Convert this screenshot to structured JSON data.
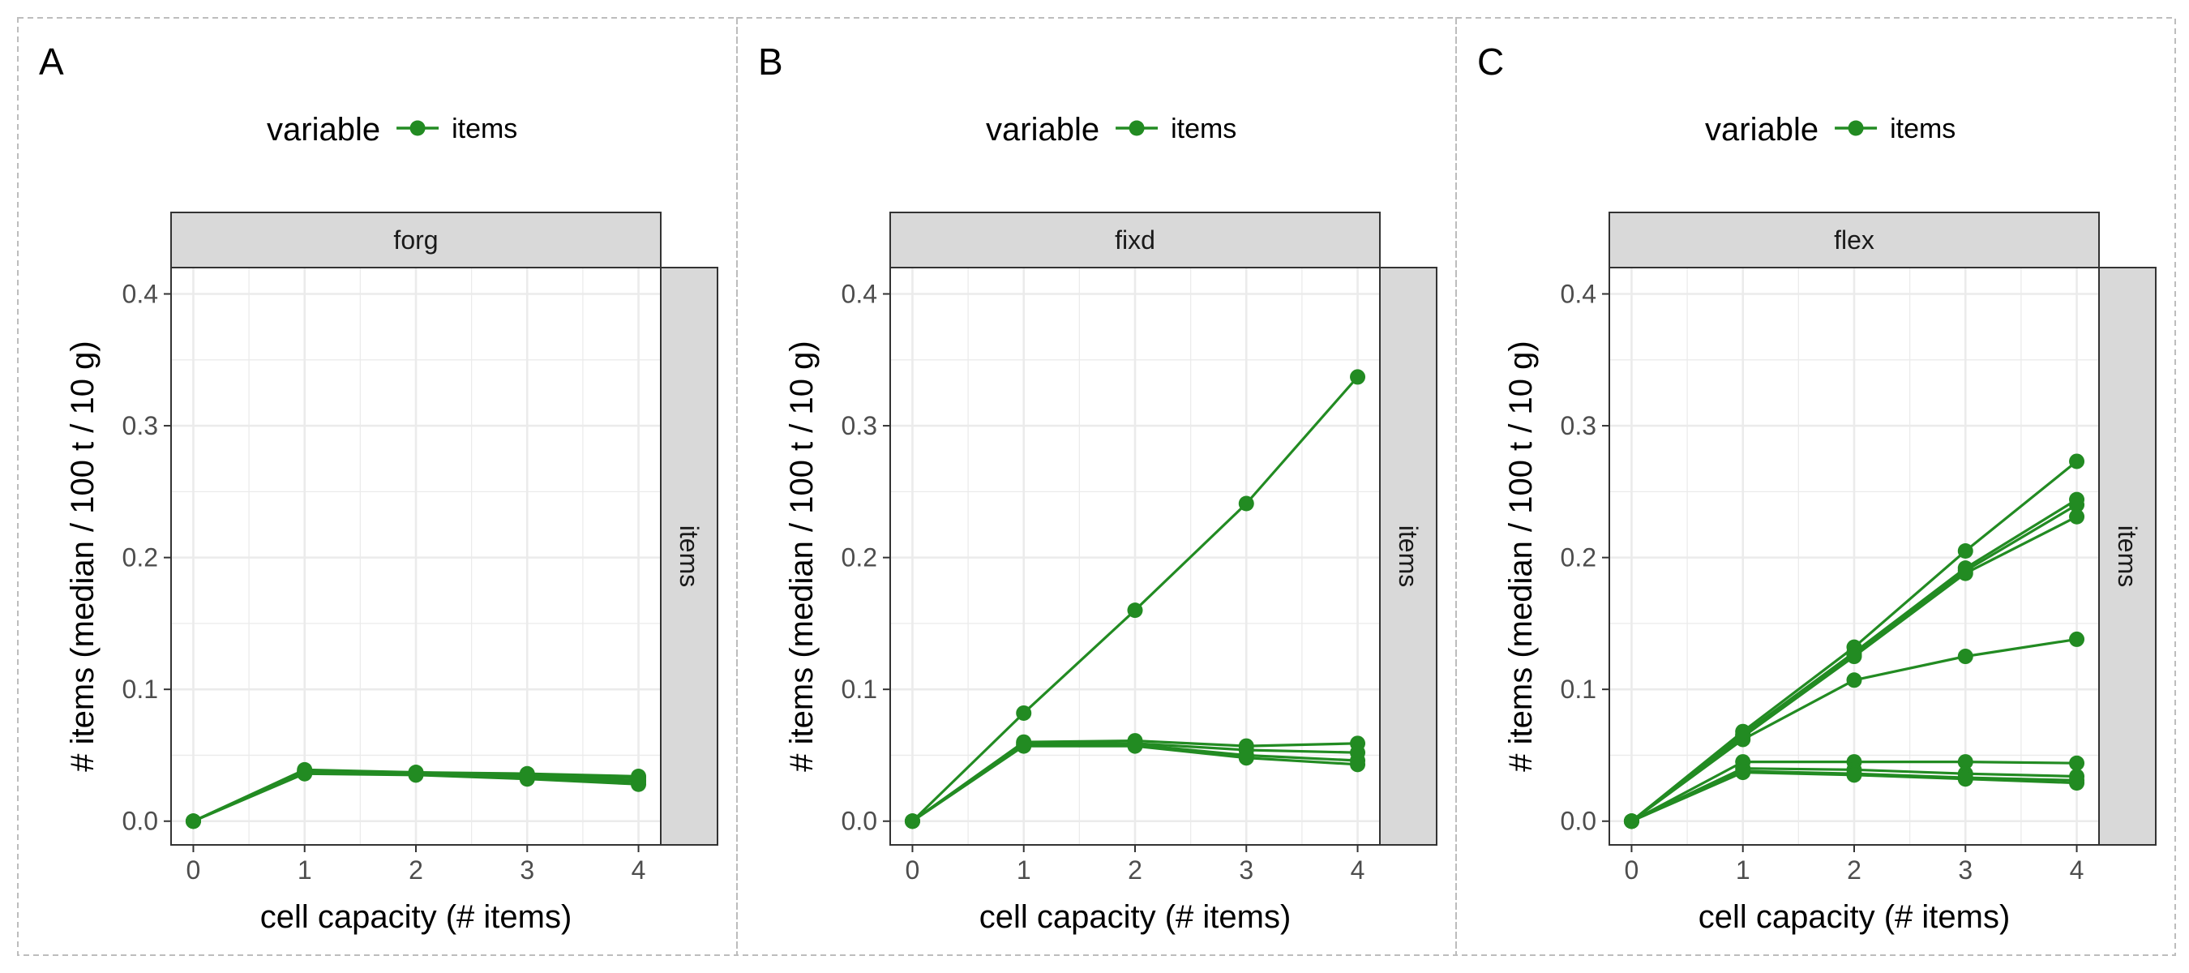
{
  "series_color": "#228B22",
  "grid_color": "#EBEBEB",
  "strip_fill": "#D9D9D9",
  "legend": {
    "title": "variable",
    "label": "items"
  },
  "chart_data": [
    {
      "type": "line",
      "panel": "A",
      "facet": "forg",
      "facet_row": "items",
      "xlabel": "cell capacity (# items)",
      "ylabel": "# items (median / 100 t / 10 g)",
      "x": [
        0,
        1,
        2,
        3,
        4
      ],
      "xticks": [
        "0",
        "1",
        "2",
        "3",
        "4"
      ],
      "yticks": [
        "0.0",
        "0.1",
        "0.2",
        "0.3",
        "0.4"
      ],
      "xlim": [
        -0.2,
        4.2
      ],
      "ylim": [
        -0.018,
        0.42
      ],
      "grid": true,
      "legend_position": "top",
      "series": [
        {
          "values": [
            0,
            0.038,
            0.037,
            0.036,
            0.034
          ]
        },
        {
          "values": [
            0,
            0.037,
            0.036,
            0.034,
            0.031
          ]
        },
        {
          "values": [
            0,
            0.036,
            0.035,
            0.032,
            0.028
          ]
        },
        {
          "values": [
            0,
            0.039,
            0.037,
            0.035,
            0.033
          ]
        },
        {
          "values": [
            0,
            0.037,
            0.036,
            0.033,
            0.03
          ]
        }
      ]
    },
    {
      "type": "line",
      "panel": "B",
      "facet": "fixd",
      "facet_row": "items",
      "xlabel": "cell capacity (# items)",
      "ylabel": "# items (median / 100 t / 10 g)",
      "x": [
        0,
        1,
        2,
        3,
        4
      ],
      "xticks": [
        "0",
        "1",
        "2",
        "3",
        "4"
      ],
      "yticks": [
        "0.0",
        "0.1",
        "0.2",
        "0.3",
        "0.4"
      ],
      "xlim": [
        -0.2,
        4.2
      ],
      "ylim": [
        -0.018,
        0.42
      ],
      "grid": true,
      "legend_position": "top",
      "series": [
        {
          "values": [
            0,
            0.082,
            0.16,
            0.241,
            0.337
          ]
        },
        {
          "values": [
            0,
            0.06,
            0.061,
            0.057,
            0.059
          ]
        },
        {
          "values": [
            0,
            0.059,
            0.059,
            0.054,
            0.052
          ]
        },
        {
          "values": [
            0,
            0.058,
            0.058,
            0.05,
            0.046
          ]
        },
        {
          "values": [
            0,
            0.057,
            0.057,
            0.048,
            0.043
          ]
        }
      ]
    },
    {
      "type": "line",
      "panel": "C",
      "facet": "flex",
      "facet_row": "items",
      "xlabel": "cell capacity (# items)",
      "ylabel": "# items (median / 100 t / 10 g)",
      "x": [
        0,
        1,
        2,
        3,
        4
      ],
      "xticks": [
        "0",
        "1",
        "2",
        "3",
        "4"
      ],
      "yticks": [
        "0.0",
        "0.1",
        "0.2",
        "0.3",
        "0.4"
      ],
      "xlim": [
        -0.2,
        4.2
      ],
      "ylim": [
        -0.018,
        0.42
      ],
      "grid": true,
      "legend_position": "top",
      "series": [
        {
          "values": [
            0,
            0.068,
            0.132,
            0.205,
            0.273
          ]
        },
        {
          "values": [
            0,
            0.066,
            0.128,
            0.192,
            0.244
          ]
        },
        {
          "values": [
            0,
            0.065,
            0.126,
            0.19,
            0.24
          ]
        },
        {
          "values": [
            0,
            0.064,
            0.125,
            0.188,
            0.231
          ]
        },
        {
          "values": [
            0,
            0.062,
            0.107,
            0.125,
            0.138
          ]
        },
        {
          "values": [
            0,
            0.045,
            0.045,
            0.045,
            0.044
          ]
        },
        {
          "values": [
            0,
            0.04,
            0.039,
            0.036,
            0.034
          ]
        },
        {
          "values": [
            0,
            0.038,
            0.036,
            0.033,
            0.031
          ]
        },
        {
          "values": [
            0,
            0.037,
            0.035,
            0.032,
            0.029
          ]
        }
      ]
    }
  ]
}
